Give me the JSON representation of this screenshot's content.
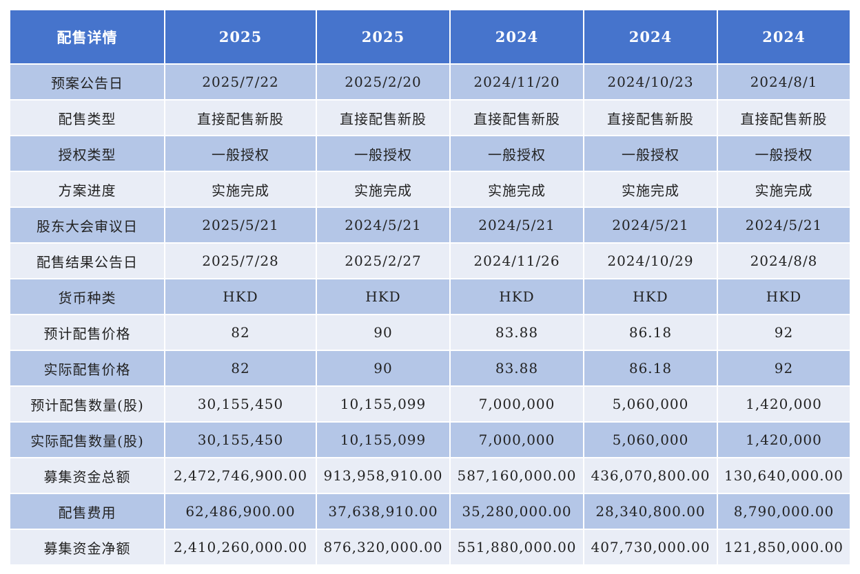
{
  "table": {
    "header": [
      "配售详情",
      "2025",
      "2025",
      "2024",
      "2024",
      "2024"
    ],
    "rows": [
      [
        "预案公告日",
        "2025/7/22",
        "2025/2/20",
        "2024/11/20",
        "2024/10/23",
        "2024/8/1"
      ],
      [
        "配售类型",
        "直接配售新股",
        "直接配售新股",
        "直接配售新股",
        "直接配售新股",
        "直接配售新股"
      ],
      [
        "授权类型",
        "一般授权",
        "一般授权",
        "一般授权",
        "一般授权",
        "一般授权"
      ],
      [
        "方案进度",
        "实施完成",
        "实施完成",
        "实施完成",
        "实施完成",
        "实施完成"
      ],
      [
        "股东大会审议日",
        "2025/5/21",
        "2024/5/21",
        "2024/5/21",
        "2024/5/21",
        "2024/5/21"
      ],
      [
        "配售结果公告日",
        "2025/7/28",
        "2025/2/27",
        "2024/11/26",
        "2024/10/29",
        "2024/8/8"
      ],
      [
        "货币种类",
        "HKD",
        "HKD",
        "HKD",
        "HKD",
        "HKD"
      ],
      [
        "预计配售价格",
        "82",
        "90",
        "83.88",
        "86.18",
        "92"
      ],
      [
        "实际配售价格",
        "82",
        "90",
        "83.88",
        "86.18",
        "92"
      ],
      [
        "预计配售数量(股)",
        "30,155,450",
        "10,155,099",
        "7,000,000",
        "5,060,000",
        "1,420,000"
      ],
      [
        "实际配售数量(股)",
        "30,155,450",
        "10,155,099",
        "7,000,000",
        "5,060,000",
        "1,420,000"
      ],
      [
        "募集资金总额",
        "2,472,746,900.00",
        "913,958,910.00",
        "587,160,000.00",
        "436,070,800.00",
        "130,640,000.00"
      ],
      [
        "配售费用",
        "62,486,900.00",
        "37,638,910.00",
        "35,280,000.00",
        "28,340,800.00",
        "8,790,000.00"
      ],
      [
        "募集资金净额",
        "2,410,260,000.00",
        "876,320,000.00",
        "551,880,000.00",
        "407,730,000.00",
        "121,850,000.00"
      ]
    ]
  }
}
